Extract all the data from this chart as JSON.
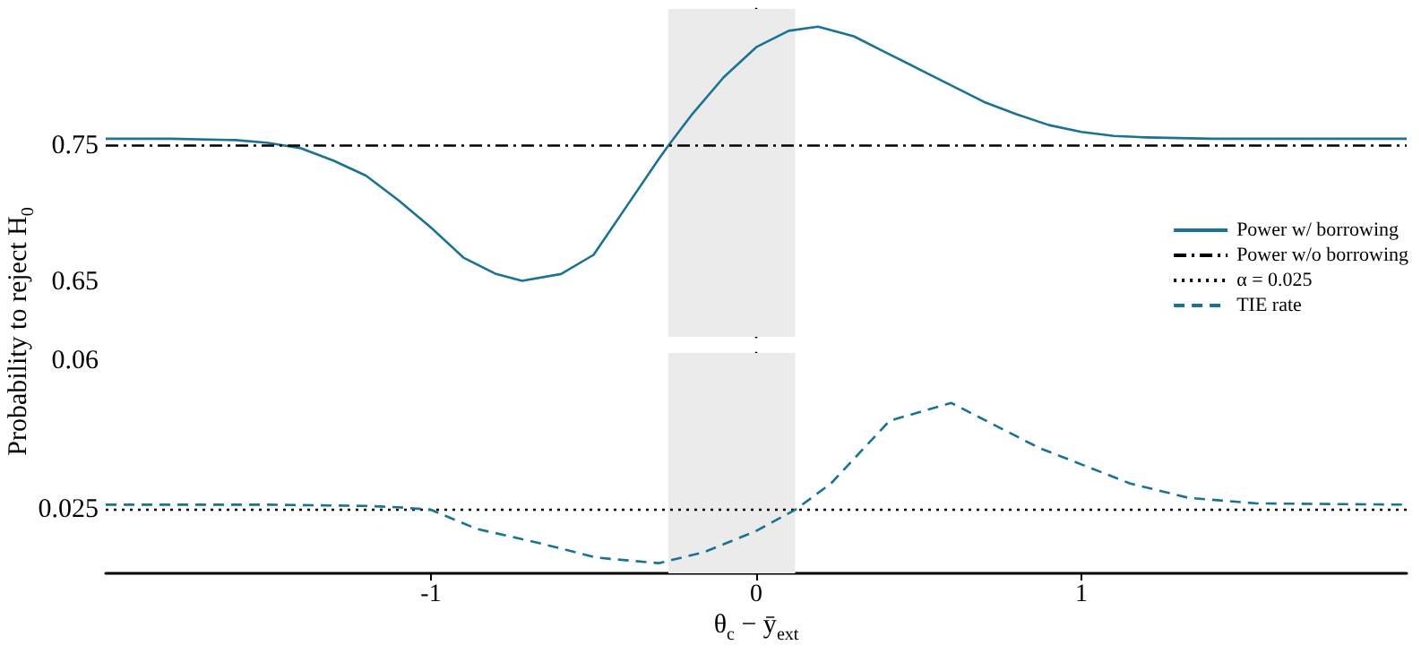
{
  "chart_data": [
    {
      "type": "line",
      "ylabel": "Probability to reject H$_{0}$",
      "xlim": [
        -2,
        2
      ],
      "xticks": [
        -1,
        0,
        1
      ],
      "ylim": [
        0.61,
        0.85
      ],
      "yticks": [
        0.65,
        0.75
      ],
      "tick_labels": "y",
      "grid": false,
      "legend": "right",
      "bands": [
        {
          "axis": "x",
          "from": -0.27,
          "to": 0.12,
          "color": "#ebebeb"
        }
      ],
      "series": [
        {
          "name": "Power w/ borrowing",
          "color": "#1b7394",
          "line_style": "solid",
          "x": [
            -2,
            -1.8,
            -1.6,
            -1.5,
            -1.4,
            -1.3,
            -1.2,
            -1.1,
            -1.0,
            -0.9,
            -0.8,
            -0.72,
            -0.6,
            -0.5,
            -0.4,
            -0.3,
            -0.27,
            -0.2,
            -0.1,
            0,
            0.1,
            0.19,
            0.3,
            0.4,
            0.5,
            0.6,
            0.7,
            0.8,
            0.9,
            1.0,
            1.1,
            1.2,
            1.4,
            2.0
          ],
          "values": [
            0.755,
            0.755,
            0.754,
            0.752,
            0.748,
            0.739,
            0.728,
            0.71,
            0.69,
            0.668,
            0.656,
            0.651,
            0.656,
            0.67,
            0.705,
            0.74,
            0.75,
            0.772,
            0.8,
            0.822,
            0.834,
            0.837,
            0.83,
            0.818,
            0.806,
            0.794,
            0.782,
            0.773,
            0.765,
            0.76,
            0.757,
            0.756,
            0.755,
            0.755
          ]
        },
        {
          "name": "Power w/o borrowing",
          "color": "#000000",
          "line_style": "dashdot",
          "x": [
            -2,
            2
          ],
          "values": [
            0.75,
            0.75
          ]
        }
      ]
    },
    {
      "type": "line",
      "xlabel": "θ$_{c}$ − ȳ$_{ext}$",
      "xlim": [
        -2,
        2
      ],
      "xticks": [
        -1,
        0,
        1
      ],
      "ylim": [
        0.01,
        0.062
      ],
      "yticks": [
        0.025,
        0.06
      ],
      "grid": false,
      "bands": [
        {
          "axis": "x",
          "from": -0.27,
          "to": 0.12,
          "color": "#ebebeb"
        }
      ],
      "series": [
        {
          "name": "α = 0.025",
          "color": "#000000",
          "line_style": "dotted",
          "x": [
            -2,
            2
          ],
          "values": [
            0.025,
            0.025
          ]
        },
        {
          "name": "TIE rate",
          "color": "#1b7394",
          "line_style": "dashed",
          "x": [
            -2,
            -1.5,
            -1.2,
            -1.1,
            -1.0,
            -0.86,
            -0.67,
            -0.49,
            -0.3,
            -0.16,
            0,
            0.12,
            0.23,
            0.41,
            0.6,
            0.87,
            1.15,
            1.33,
            1.54,
            2.0
          ],
          "values": [
            0.0262,
            0.0262,
            0.0259,
            0.0256,
            0.025,
            0.0205,
            0.0172,
            0.0137,
            0.0124,
            0.015,
            0.02,
            0.025,
            0.0312,
            0.046,
            0.0502,
            0.0396,
            0.0312,
            0.0278,
            0.0265,
            0.0262
          ]
        }
      ]
    }
  ]
}
